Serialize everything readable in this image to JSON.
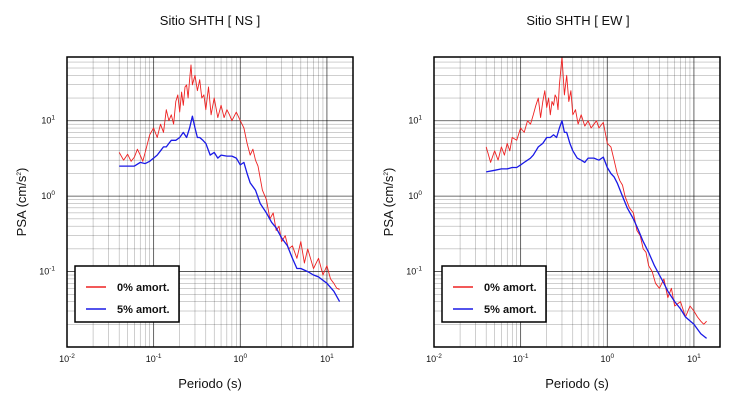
{
  "colors": {
    "undamped": "#ee2222",
    "damped": "#1a1ae6",
    "frame": "#000000",
    "grid": "#000000"
  },
  "chart_data": [
    {
      "type": "line",
      "title": "Sitio SHTH [ NS ]",
      "xlabel": "Periodo (s)",
      "ylabel_main": "PSA (cm/s",
      "ylabel_exp": "2",
      "ylabel_close": ")",
      "x_scale": "log",
      "y_scale": "log",
      "xlim": [
        0.01,
        20
      ],
      "ylim": [
        0.01,
        70
      ],
      "x_ticks": [
        {
          "value": 0.01,
          "mant": "10",
          "exp": "-2"
        },
        {
          "value": 0.1,
          "mant": "10",
          "exp": "-1"
        },
        {
          "value": 1,
          "mant": "10",
          "exp": "0"
        },
        {
          "value": 10,
          "mant": "10",
          "exp": "1"
        }
      ],
      "y_ticks": [
        {
          "value": 0.1,
          "mant": "10",
          "exp": "-1"
        },
        {
          "value": 1,
          "mant": "10",
          "exp": "0"
        },
        {
          "value": 10,
          "mant": "10",
          "exp": "1"
        }
      ],
      "grid": true,
      "legend_position": "bottom-left",
      "series": [
        {
          "name": "0% amort.",
          "color": "#ee2222",
          "x": [
            0.04,
            0.045,
            0.05,
            0.055,
            0.06,
            0.065,
            0.07,
            0.075,
            0.08,
            0.09,
            0.1,
            0.11,
            0.12,
            0.13,
            0.14,
            0.15,
            0.16,
            0.17,
            0.18,
            0.19,
            0.2,
            0.21,
            0.22,
            0.23,
            0.24,
            0.25,
            0.26,
            0.27,
            0.28,
            0.3,
            0.32,
            0.34,
            0.36,
            0.38,
            0.4,
            0.43,
            0.46,
            0.5,
            0.55,
            0.6,
            0.65,
            0.7,
            0.75,
            0.8,
            0.9,
            1.0,
            1.1,
            1.2,
            1.3,
            1.4,
            1.5,
            1.6,
            1.8,
            2.0,
            2.2,
            2.4,
            2.6,
            2.8,
            3.0,
            3.3,
            3.6,
            4.0,
            4.5,
            5.0,
            5.5,
            6.0,
            7.0,
            8.0,
            9.0,
            10.0,
            11.0,
            12.0,
            13.0,
            14.0
          ],
          "y": [
            3.8,
            3.0,
            3.6,
            2.9,
            3.3,
            4.2,
            3.5,
            2.9,
            3.8,
            6.5,
            8.0,
            6.0,
            9.0,
            7.0,
            14,
            10,
            12,
            9,
            18,
            22,
            13,
            24,
            16,
            28,
            30,
            20,
            35,
            55,
            30,
            40,
            25,
            35,
            20,
            22,
            14,
            28,
            12,
            20,
            11,
            16,
            11,
            14,
            12,
            10,
            13,
            10,
            8,
            5,
            3.5,
            4.2,
            3.0,
            2.5,
            1.2,
            0.9,
            0.5,
            0.6,
            0.35,
            0.4,
            0.25,
            0.3,
            0.2,
            0.22,
            0.15,
            0.25,
            0.13,
            0.2,
            0.11,
            0.15,
            0.09,
            0.12,
            0.08,
            0.07,
            0.06,
            0.058
          ]
        },
        {
          "name": "5% amort.",
          "color": "#1a1ae6",
          "x": [
            0.04,
            0.05,
            0.06,
            0.07,
            0.08,
            0.09,
            0.1,
            0.11,
            0.12,
            0.13,
            0.14,
            0.15,
            0.16,
            0.18,
            0.2,
            0.22,
            0.24,
            0.26,
            0.28,
            0.3,
            0.32,
            0.34,
            0.37,
            0.4,
            0.45,
            0.5,
            0.55,
            0.6,
            0.7,
            0.8,
            0.9,
            1.0,
            1.1,
            1.2,
            1.3,
            1.5,
            1.7,
            2.0,
            2.3,
            2.6,
            3.0,
            3.5,
            4.0,
            4.5,
            5.0,
            6.0,
            7.0,
            8.0,
            10.0,
            12.0,
            14.0
          ],
          "y": [
            2.5,
            2.5,
            2.5,
            2.8,
            2.7,
            2.9,
            3.2,
            3.5,
            4.0,
            4.5,
            4.5,
            5.0,
            5.5,
            5.5,
            6.0,
            7.0,
            6.0,
            8.0,
            11.5,
            8.0,
            6.0,
            6.0,
            5.5,
            5.0,
            3.5,
            3.8,
            3.2,
            3.5,
            3.4,
            3.4,
            3.2,
            2.6,
            2.8,
            2.0,
            1.5,
            1.2,
            0.8,
            0.6,
            0.45,
            0.38,
            0.28,
            0.22,
            0.15,
            0.11,
            0.11,
            0.1,
            0.09,
            0.085,
            0.07,
            0.055,
            0.04
          ]
        }
      ]
    },
    {
      "type": "line",
      "title": "Sitio SHTH [ EW ]",
      "xlabel": "Periodo (s)",
      "ylabel_main": "PSA (cm/s",
      "ylabel_exp": "2",
      "ylabel_close": ")",
      "x_scale": "log",
      "y_scale": "log",
      "xlim": [
        0.01,
        20
      ],
      "ylim": [
        0.01,
        70
      ],
      "x_ticks": [
        {
          "value": 0.01,
          "mant": "10",
          "exp": "-2"
        },
        {
          "value": 0.1,
          "mant": "10",
          "exp": "-1"
        },
        {
          "value": 1,
          "mant": "10",
          "exp": "0"
        },
        {
          "value": 10,
          "mant": "10",
          "exp": "1"
        }
      ],
      "y_ticks": [
        {
          "value": 0.1,
          "mant": "10",
          "exp": "-1"
        },
        {
          "value": 1,
          "mant": "10",
          "exp": "0"
        },
        {
          "value": 10,
          "mant": "10",
          "exp": "1"
        }
      ],
      "grid": true,
      "legend_position": "bottom-left",
      "series": [
        {
          "name": "0% amort.",
          "color": "#ee2222",
          "x": [
            0.04,
            0.045,
            0.05,
            0.055,
            0.06,
            0.065,
            0.07,
            0.075,
            0.08,
            0.09,
            0.1,
            0.11,
            0.12,
            0.13,
            0.14,
            0.15,
            0.16,
            0.17,
            0.18,
            0.19,
            0.2,
            0.21,
            0.22,
            0.23,
            0.24,
            0.25,
            0.26,
            0.27,
            0.28,
            0.3,
            0.32,
            0.34,
            0.36,
            0.38,
            0.4,
            0.43,
            0.46,
            0.5,
            0.55,
            0.6,
            0.65,
            0.7,
            0.75,
            0.8,
            0.9,
            1.0,
            1.1,
            1.2,
            1.3,
            1.4,
            1.5,
            1.6,
            1.8,
            2.0,
            2.2,
            2.4,
            2.6,
            2.8,
            3.0,
            3.3,
            3.6,
            4.0,
            4.5,
            5.0,
            5.5,
            6.0,
            7.0,
            8.0,
            9.0,
            10.0,
            11.0,
            12.0,
            13.0,
            14.0
          ],
          "y": [
            4.5,
            2.8,
            4.0,
            3.0,
            4.5,
            3.5,
            5.0,
            4.0,
            6.0,
            5.5,
            8.0,
            7.0,
            10,
            9.0,
            12,
            16,
            20,
            11,
            18,
            25,
            15,
            20,
            12,
            18,
            16,
            22,
            20,
            14,
            30,
            70,
            22,
            40,
            18,
            25,
            12,
            14,
            9.0,
            12,
            8.5,
            10,
            8.0,
            9.0,
            10,
            8.0,
            9.5,
            5.0,
            4.5,
            3.0,
            2.0,
            1.6,
            1.4,
            1.0,
            0.7,
            0.6,
            0.35,
            0.3,
            0.2,
            0.18,
            0.12,
            0.1,
            0.07,
            0.06,
            0.08,
            0.045,
            0.06,
            0.035,
            0.04,
            0.025,
            0.035,
            0.03,
            0.025,
            0.022,
            0.02,
            0.022
          ]
        },
        {
          "name": "5% amort.",
          "color": "#1a1ae6",
          "x": [
            0.04,
            0.05,
            0.06,
            0.07,
            0.08,
            0.09,
            0.1,
            0.11,
            0.12,
            0.13,
            0.14,
            0.15,
            0.16,
            0.18,
            0.2,
            0.22,
            0.24,
            0.26,
            0.28,
            0.3,
            0.32,
            0.34,
            0.37,
            0.4,
            0.45,
            0.5,
            0.55,
            0.6,
            0.7,
            0.8,
            0.9,
            1.0,
            1.1,
            1.2,
            1.3,
            1.5,
            1.7,
            2.0,
            2.3,
            2.6,
            3.0,
            3.5,
            4.0,
            4.5,
            5.0,
            6.0,
            7.0,
            8.0,
            10.0,
            12.0,
            14.0
          ],
          "y": [
            2.1,
            2.2,
            2.3,
            2.3,
            2.4,
            2.4,
            2.6,
            2.8,
            3.0,
            3.2,
            3.5,
            4.0,
            4.5,
            5.0,
            6.0,
            6.0,
            6.5,
            6.0,
            8.0,
            10.0,
            7.0,
            7.0,
            5.0,
            4.0,
            3.2,
            3.0,
            2.8,
            3.2,
            3.2,
            3.0,
            3.3,
            2.4,
            2.0,
            1.8,
            1.5,
            1.0,
            0.7,
            0.5,
            0.35,
            0.25,
            0.18,
            0.12,
            0.09,
            0.07,
            0.055,
            0.04,
            0.032,
            0.025,
            0.02,
            0.015,
            0.013
          ]
        }
      ]
    }
  ]
}
